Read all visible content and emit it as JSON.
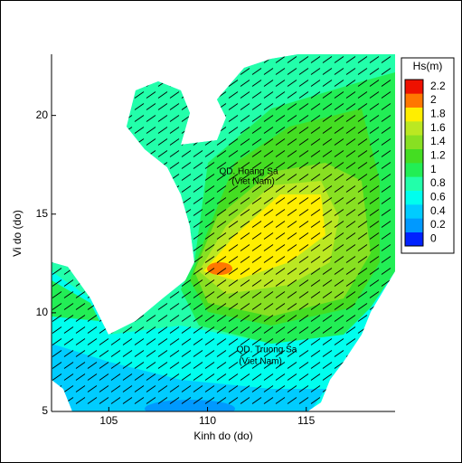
{
  "chart_data": {
    "type": "contour",
    "xlabel": "Kinh do (do)",
    "ylabel": "Vi do (do)",
    "xlim": [
      102.1,
      119.5
    ],
    "ylim": [
      5,
      23.1
    ],
    "xticks": [
      105,
      110,
      115
    ],
    "yticks": [
      5,
      10,
      15,
      20
    ],
    "annotations": [
      "QD. Hoang Sa",
      "(Viet Nam)",
      "QD. Truong Sa",
      "(Viet Nam)"
    ],
    "colorbar": {
      "label": "Hs(m)",
      "ticks": [
        0,
        0.2,
        0.4,
        0.6,
        0.8,
        1,
        1.2,
        1.4,
        1.6,
        1.8,
        2,
        2.2
      ],
      "colors": [
        "#0022ff",
        "#0099ff",
        "#00ccff",
        "#00ffee",
        "#22ffaa",
        "#22ee55",
        "#44dd22",
        "#88e022",
        "#bbe822",
        "#ffee00",
        "#ff7700",
        "#ee1100"
      ]
    }
  }
}
